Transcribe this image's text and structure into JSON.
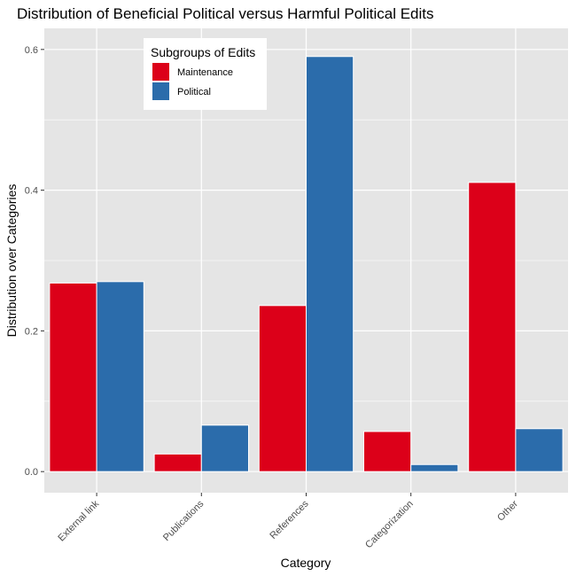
{
  "chart_data": {
    "type": "bar",
    "title": "Distribution of Beneficial Political versus Harmful Political Edits",
    "xlabel": "Category",
    "ylabel": "Distribution over Categories",
    "categories": [
      "External link",
      "Publications",
      "References",
      "Categorization",
      "Other"
    ],
    "series": [
      {
        "name": "Maintenance",
        "color": "#dc0019",
        "values": [
          0.268,
          0.025,
          0.236,
          0.057,
          0.411
        ]
      },
      {
        "name": "Political",
        "color": "#2b6cab",
        "values": [
          0.27,
          0.066,
          0.59,
          0.01,
          0.061
        ]
      }
    ],
    "ylim": [
      -0.03,
      0.63
    ],
    "yticks": [
      "0.0",
      "0.2",
      "0.4",
      "0.6"
    ],
    "legend": {
      "title": "Subgroups of Edits",
      "position": "top-left inside"
    },
    "grid": true,
    "panel_background": "#e5e5e5",
    "grid_color": "#ffffff"
  }
}
